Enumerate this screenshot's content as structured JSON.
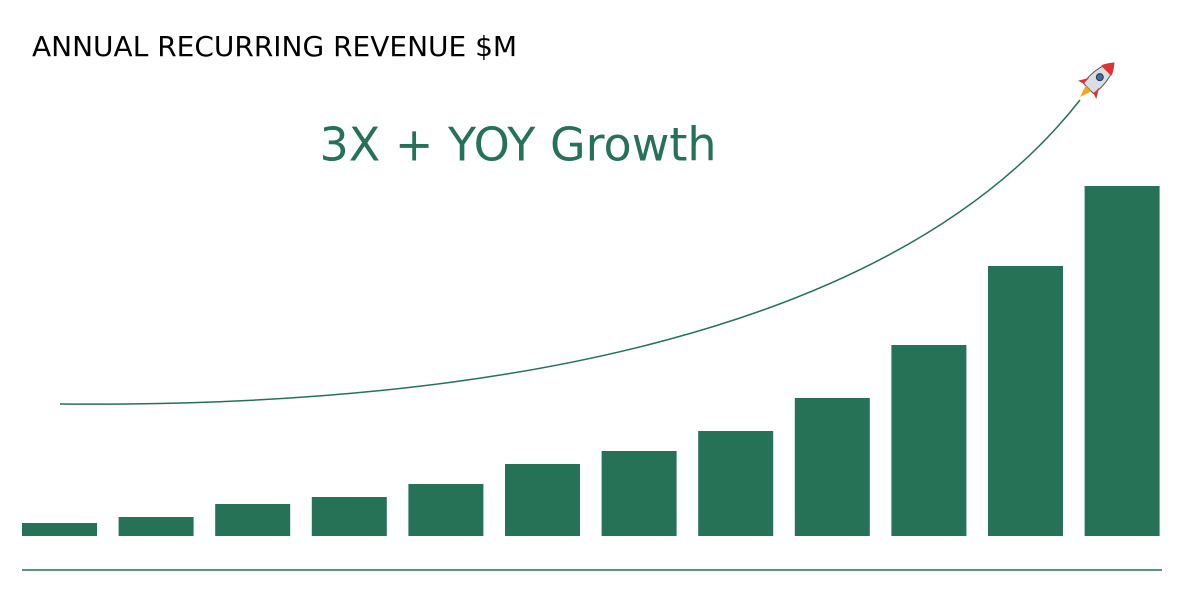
{
  "chart_data": {
    "type": "bar",
    "title": "ANNUAL RECURRING REVENUE $M",
    "annotation": "3X + YOY Growth",
    "values": [
      13,
      19,
      32,
      39,
      52,
      72,
      85,
      105,
      138,
      191,
      270,
      350
    ],
    "color": "#257257"
  }
}
